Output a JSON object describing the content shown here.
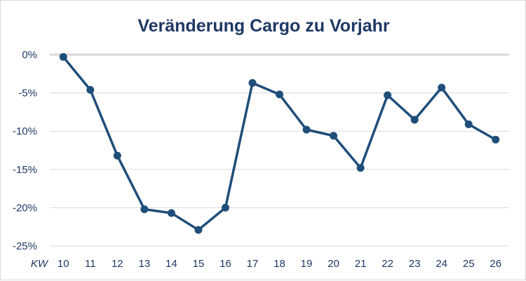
{
  "chart_data": {
    "type": "line",
    "title": "Veränderung Cargo zu Vorjahr",
    "x_prefix": "KW",
    "categories": [
      "10",
      "11",
      "12",
      "13",
      "14",
      "15",
      "16",
      "17",
      "18",
      "19",
      "20",
      "21",
      "22",
      "23",
      "24",
      "25",
      "26"
    ],
    "series": [
      {
        "values": [
          -0.3,
          -4.6,
          -13.2,
          -20.2,
          -20.7,
          -22.9,
          -20.0,
          -3.7,
          -5.2,
          -9.8,
          -10.6,
          -14.8,
          -5.3,
          -8.5,
          -4.3,
          -9.1,
          -11.1
        ]
      }
    ],
    "ylim": [
      -25,
      0
    ],
    "yticks": [
      0,
      -5,
      -10,
      -15,
      -20,
      -25
    ],
    "ytick_labels": [
      "0%",
      "-5%",
      "-10%",
      "-15%",
      "-20%",
      "-25%"
    ],
    "grid": true,
    "colors": {
      "line": "#1f4e79",
      "gridline": "#d9d9d9",
      "zero_line": "#d9d9d9",
      "text": "#1f3864"
    }
  }
}
